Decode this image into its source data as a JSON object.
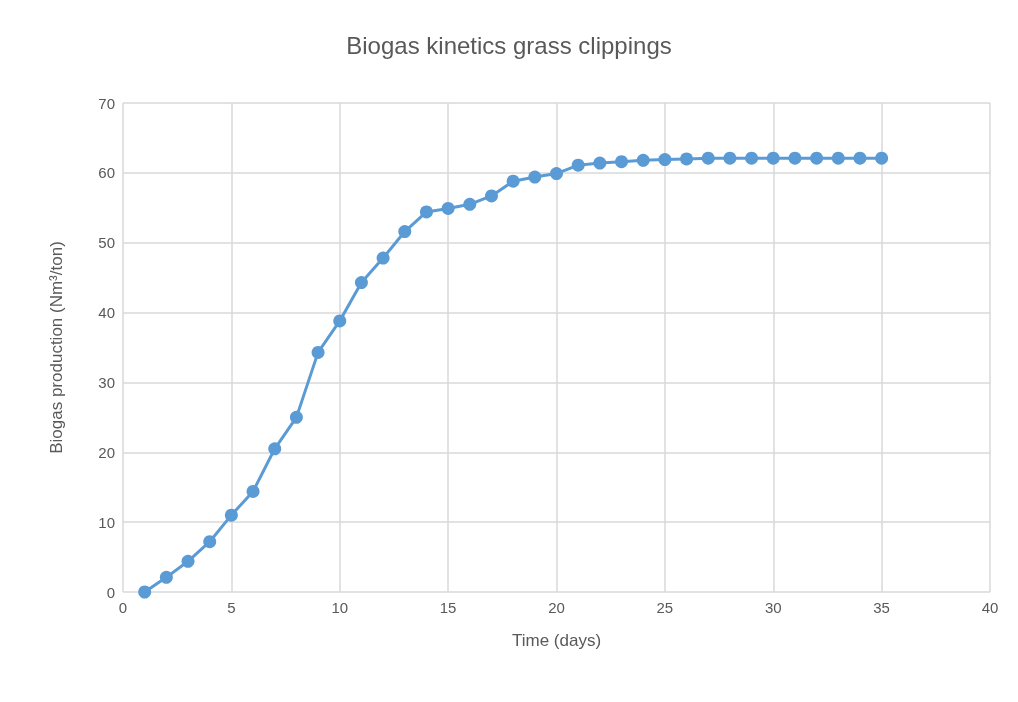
{
  "chart_data": {
    "type": "line",
    "title": "Biogas kinetics grass clippings",
    "xlabel": "Time (days)",
    "ylabel": "Biogas production (Nm³/ton)",
    "x": [
      1,
      2,
      3,
      4,
      5,
      6,
      7,
      8,
      9,
      10,
      11,
      12,
      13,
      14,
      15,
      16,
      17,
      18,
      19,
      20,
      21,
      22,
      23,
      24,
      25,
      26,
      27,
      28,
      29,
      30,
      31,
      32,
      33,
      34,
      35
    ],
    "series": [
      {
        "color": "#5b9bd5",
        "values": [
          0,
          2.1,
          4.4,
          7.2,
          11.0,
          14.4,
          20.5,
          25.0,
          34.3,
          38.8,
          44.3,
          47.8,
          51.6,
          54.4,
          54.9,
          55.5,
          56.7,
          58.8,
          59.4,
          59.9,
          61.1,
          61.4,
          61.6,
          61.8,
          61.9,
          62.0,
          62.1,
          62.1,
          62.1,
          62.1,
          62.1,
          62.1,
          62.1,
          62.1,
          62.1
        ]
      }
    ],
    "xlim": [
      0,
      40
    ],
    "xticks": [
      0,
      5,
      10,
      15,
      20,
      25,
      30,
      35,
      40
    ],
    "ylim": [
      0,
      70
    ],
    "yticks": [
      0,
      10,
      20,
      30,
      40,
      50,
      60,
      70
    ],
    "grid": true,
    "marker": "circle",
    "line_style": "solid"
  }
}
